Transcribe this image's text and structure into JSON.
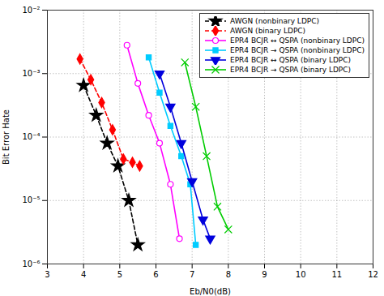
{
  "chart_data": {
    "type": "line",
    "xlabel": "Eb/N0(dB)",
    "ylabel": "Bit Error Hate",
    "log": "y",
    "grid": true,
    "legend": "upper right",
    "xlim": [
      3,
      12
    ],
    "xticks": [
      3,
      4,
      5,
      6,
      7,
      8,
      9,
      10,
      11,
      12
    ],
    "ylim": [
      1e-06,
      0.01
    ],
    "yticks": [
      {
        "value": 1e-06,
        "label": "10⁻⁶"
      },
      {
        "value": 1e-05,
        "label": "10⁻⁵"
      },
      {
        "value": 0.0001,
        "label": "10⁻⁴"
      },
      {
        "value": 0.001,
        "label": "10⁻³"
      },
      {
        "value": 0.01,
        "label": "10⁻²"
      }
    ],
    "series": [
      {
        "name": "AWGN (nonbinary LDPC)",
        "color": "#000000",
        "line_style": "dashed",
        "marker": "star",
        "x": [
          4.0,
          4.35,
          4.65,
          4.95,
          5.25,
          5.5
        ],
        "values": [
          0.00065,
          0.00022,
          8e-05,
          3.5e-05,
          1e-05,
          2e-06
        ]
      },
      {
        "name": "AWGN (binary LDPC)",
        "color": "#ff0000",
        "line_style": "dashed",
        "marker": "diamond",
        "x": [
          3.9,
          4.2,
          4.5,
          4.8,
          5.1,
          5.35,
          5.55
        ],
        "values": [
          0.0017,
          0.0008,
          0.00035,
          0.00013,
          4.5e-05,
          4e-05,
          3.5e-05
        ]
      },
      {
        "name": "EPR4 BCJR ↔ QSPA (nonbinary LDPC)",
        "color": "#ff00ff",
        "line_style": "solid",
        "marker": "circle-open",
        "x": [
          5.2,
          5.5,
          5.8,
          6.1,
          6.4,
          6.65
        ],
        "values": [
          0.0028,
          0.0007,
          0.00022,
          8e-05,
          1.8e-05,
          2.5e-06
        ]
      },
      {
        "name": "EPR4 BCJR → QSPA (nonbinary LDPC)",
        "color": "#00ccff",
        "line_style": "solid",
        "marker": "square",
        "x": [
          5.8,
          6.1,
          6.4,
          6.7,
          6.95,
          7.1
        ],
        "values": [
          0.0018,
          0.0005,
          0.00015,
          5e-05,
          1.8e-05,
          2e-06
        ]
      },
      {
        "name": "EPR4 BCJR ↔ QSPA (binary LDPC)",
        "color": "#0000dd",
        "line_style": "solid",
        "marker": "triangle-down",
        "x": [
          6.1,
          6.4,
          6.7,
          7.0,
          7.3,
          7.5
        ],
        "values": [
          0.001,
          0.0003,
          8e-05,
          2e-05,
          5e-06,
          2.5e-06
        ]
      },
      {
        "name": "EPR4 BCJR → QSPA (binary LDPC)",
        "color": "#00cc00",
        "line_style": "solid",
        "marker": "x",
        "x": [
          6.8,
          7.1,
          7.4,
          7.7,
          8.0
        ],
        "values": [
          0.0015,
          0.0003,
          5e-05,
          8e-06,
          3.5e-06
        ]
      }
    ]
  }
}
